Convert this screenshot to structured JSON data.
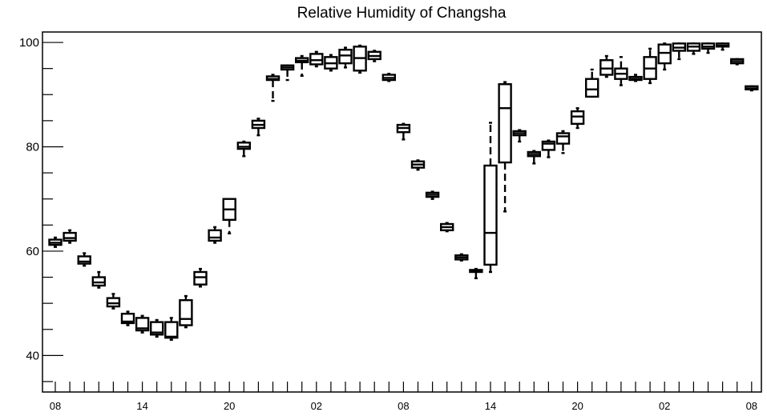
{
  "chart_data": {
    "type": "boxplot",
    "title": "Relative Humidity of Changsha",
    "xlabel": "",
    "ylabel": "",
    "ylim": [
      33,
      102
    ],
    "y_ticks": [
      40,
      60,
      80,
      100
    ],
    "x_tick_labels": [
      {
        "index": 0,
        "label": "08"
      },
      {
        "index": 6,
        "label": "14"
      },
      {
        "index": 12,
        "label": "20"
      },
      {
        "index": 18,
        "label": "02"
      },
      {
        "index": 24,
        "label": "08"
      },
      {
        "index": 30,
        "label": "14"
      },
      {
        "index": 36,
        "label": "20"
      },
      {
        "index": 42,
        "label": "02"
      },
      {
        "index": 48,
        "label": "08"
      }
    ],
    "boxes": [
      {
        "i": 0,
        "min": 60.8,
        "q1": 61.2,
        "med": 61.6,
        "q3": 62.2,
        "max": 62.6
      },
      {
        "i": 1,
        "min": 61.6,
        "q1": 62.0,
        "med": 62.5,
        "q3": 63.5,
        "max": 64.0
      },
      {
        "i": 2,
        "min": 57.2,
        "q1": 57.6,
        "med": 58.0,
        "q3": 59.0,
        "max": 59.6
      },
      {
        "i": 3,
        "min": 53.0,
        "q1": 53.4,
        "med": 54.0,
        "q3": 55.0,
        "max": 56.0
      },
      {
        "i": 4,
        "min": 49.0,
        "q1": 49.4,
        "med": 50.0,
        "q3": 51.0,
        "max": 51.8
      },
      {
        "i": 5,
        "min": 45.8,
        "q1": 46.2,
        "med": 46.5,
        "q3": 48.0,
        "max": 48.4
      },
      {
        "i": 6,
        "min": 44.4,
        "q1": 44.8,
        "med": 45.2,
        "q3": 47.2,
        "max": 47.6
      },
      {
        "i": 7,
        "min": 43.6,
        "q1": 44.0,
        "med": 44.4,
        "q3": 46.4,
        "max": 46.8
      },
      {
        "i": 8,
        "min": 43.0,
        "q1": 43.4,
        "med": 43.6,
        "q3": 46.4,
        "max": 47.2
      },
      {
        "i": 9,
        "min": 45.4,
        "q1": 45.8,
        "med": 47.0,
        "q3": 50.6,
        "max": 51.4
      },
      {
        "i": 10,
        "min": 53.2,
        "q1": 53.6,
        "med": 55.0,
        "q3": 56.0,
        "max": 56.6
      },
      {
        "i": 11,
        "min": 61.6,
        "q1": 62.0,
        "med": 62.6,
        "q3": 64.0,
        "max": 64.6
      },
      {
        "i": 12,
        "min": 63.4,
        "q1": 66.0,
        "med": 68.0,
        "q3": 70.0,
        "max": 70.0
      },
      {
        "i": 13,
        "min": 78.2,
        "q1": 79.6,
        "med": 80.0,
        "q3": 80.8,
        "max": 81.0
      },
      {
        "i": 14,
        "min": 82.2,
        "q1": 83.6,
        "med": 84.2,
        "q3": 85.0,
        "max": 85.4
      },
      {
        "i": 15,
        "min": 88.8,
        "q1": 92.8,
        "med": 93.0,
        "q3": 93.5,
        "max": 93.8
      },
      {
        "i": 16,
        "min": 92.8,
        "q1": 94.8,
        "med": 95.2,
        "q3": 95.6,
        "max": 95.6
      },
      {
        "i": 17,
        "min": 93.6,
        "q1": 96.2,
        "med": 96.5,
        "q3": 97.0,
        "max": 97.4
      },
      {
        "i": 18,
        "min": 95.4,
        "q1": 95.8,
        "med": 96.6,
        "q3": 97.8,
        "max": 98.2
      },
      {
        "i": 19,
        "min": 94.6,
        "q1": 95.0,
        "med": 96.0,
        "q3": 97.2,
        "max": 97.6
      },
      {
        "i": 20,
        "min": 95.2,
        "q1": 96.0,
        "med": 97.5,
        "q3": 98.6,
        "max": 99.0
      },
      {
        "i": 21,
        "min": 94.2,
        "q1": 94.6,
        "med": 97.0,
        "q3": 99.2,
        "max": 99.4
      },
      {
        "i": 22,
        "min": 96.4,
        "q1": 96.8,
        "med": 97.4,
        "q3": 98.2,
        "max": 98.4
      },
      {
        "i": 23,
        "min": 92.6,
        "q1": 92.8,
        "med": 93.2,
        "q3": 93.8,
        "max": 94.0
      },
      {
        "i": 24,
        "min": 81.4,
        "q1": 82.8,
        "med": 83.6,
        "q3": 84.2,
        "max": 84.4
      },
      {
        "i": 25,
        "min": 75.6,
        "q1": 76.0,
        "med": 76.6,
        "q3": 77.2,
        "max": 77.4
      },
      {
        "i": 26,
        "min": 70.0,
        "q1": 70.4,
        "med": 70.8,
        "q3": 71.2,
        "max": 71.4
      },
      {
        "i": 27,
        "min": 63.8,
        "q1": 64.0,
        "med": 64.6,
        "q3": 65.2,
        "max": 65.4
      },
      {
        "i": 28,
        "min": 58.2,
        "q1": 58.4,
        "med": 58.8,
        "q3": 59.2,
        "max": 59.4
      },
      {
        "i": 29,
        "min": 54.8,
        "q1": 56.0,
        "med": 56.2,
        "q3": 56.4,
        "max": 56.6
      },
      {
        "i": 30,
        "min": 56.0,
        "q1": 57.4,
        "med": 63.5,
        "q3": 76.4,
        "max": 84.6
      },
      {
        "i": 31,
        "min": 67.6,
        "q1": 77.0,
        "med": 87.4,
        "q3": 92.0,
        "max": 92.4
      },
      {
        "i": 32,
        "min": 81.0,
        "q1": 82.2,
        "med": 82.6,
        "q3": 83.0,
        "max": 83.2
      },
      {
        "i": 33,
        "min": 76.8,
        "q1": 78.2,
        "med": 78.6,
        "q3": 79.0,
        "max": 79.2
      },
      {
        "i": 34,
        "min": 78.0,
        "q1": 79.4,
        "med": 80.6,
        "q3": 81.0,
        "max": 81.2
      },
      {
        "i": 35,
        "min": 78.8,
        "q1": 80.6,
        "med": 82.0,
        "q3": 82.6,
        "max": 83.0
      },
      {
        "i": 36,
        "min": 83.6,
        "q1": 84.4,
        "med": 85.8,
        "q3": 86.8,
        "max": 87.4
      },
      {
        "i": 37,
        "min": 89.6,
        "q1": 89.6,
        "med": 91.0,
        "q3": 93.0,
        "max": 94.8
      },
      {
        "i": 38,
        "min": 93.4,
        "q1": 93.8,
        "med": 95.0,
        "q3": 96.6,
        "max": 97.4
      },
      {
        "i": 39,
        "min": 91.8,
        "q1": 93.0,
        "med": 94.0,
        "q3": 95.0,
        "max": 97.2
      },
      {
        "i": 40,
        "min": 92.6,
        "q1": 92.8,
        "med": 93.0,
        "q3": 93.4,
        "max": 93.8
      },
      {
        "i": 41,
        "min": 92.2,
        "q1": 93.0,
        "med": 95.0,
        "q3": 97.2,
        "max": 98.8
      },
      {
        "i": 42,
        "min": 94.8,
        "q1": 96.0,
        "med": 98.0,
        "q3": 99.6,
        "max": 99.8
      },
      {
        "i": 43,
        "min": 96.8,
        "q1": 98.4,
        "med": 99.0,
        "q3": 99.8,
        "max": 99.8
      },
      {
        "i": 44,
        "min": 97.8,
        "q1": 98.4,
        "med": 99.2,
        "q3": 99.8,
        "max": 99.8
      },
      {
        "i": 45,
        "min": 98.0,
        "q1": 98.8,
        "med": 99.2,
        "q3": 99.8,
        "max": 99.8
      },
      {
        "i": 46,
        "min": 98.6,
        "q1": 99.2,
        "med": 99.4,
        "q3": 99.8,
        "max": 99.8
      },
      {
        "i": 47,
        "min": 95.8,
        "q1": 96.0,
        "med": 96.4,
        "q3": 96.8,
        "max": 96.8
      },
      {
        "i": 48,
        "min": 90.8,
        "q1": 91.0,
        "med": 91.2,
        "q3": 91.6,
        "max": 91.6
      }
    ]
  }
}
